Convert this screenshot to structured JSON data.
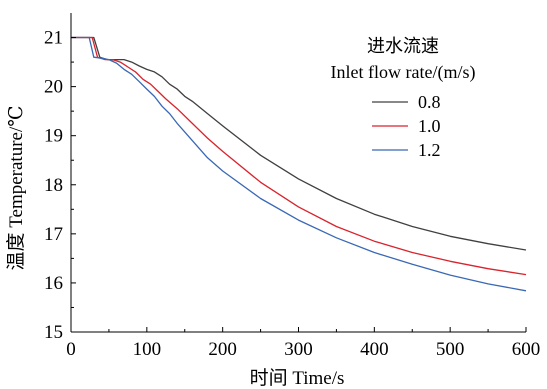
{
  "chart_data": {
    "type": "line",
    "title": "",
    "xlabel": "时间 Time/s",
    "ylabel": "温度 Temperature/℃",
    "xlim": [
      0,
      600
    ],
    "ylim": [
      15,
      21.5
    ],
    "x_ticks": [
      0,
      100,
      200,
      300,
      400,
      500,
      600
    ],
    "y_ticks": [
      15,
      16,
      17,
      18,
      19,
      20,
      21
    ],
    "grid": false,
    "legend": {
      "title_line1": "进水流速",
      "title_line2": "Inlet flow rate/(m/s)",
      "placement": "top-right"
    },
    "series": [
      {
        "name": "0.8",
        "color": "#404040",
        "x": [
          0,
          25,
          30,
          38,
          48,
          60,
          70,
          80,
          90,
          100,
          110,
          120,
          130,
          140,
          150,
          160,
          180,
          200,
          250,
          300,
          350,
          400,
          450,
          500,
          550,
          600
        ],
        "y": [
          21.0,
          21.0,
          21.0,
          20.6,
          20.55,
          20.55,
          20.55,
          20.5,
          20.42,
          20.35,
          20.3,
          20.2,
          20.05,
          19.95,
          19.8,
          19.7,
          19.45,
          19.2,
          18.6,
          18.12,
          17.72,
          17.4,
          17.15,
          16.95,
          16.8,
          16.67
        ]
      },
      {
        "name": "1.0",
        "color": "#d9232d",
        "x": [
          0,
          22,
          28,
          35,
          45,
          55,
          65,
          75,
          85,
          95,
          105,
          115,
          125,
          140,
          160,
          180,
          200,
          250,
          300,
          350,
          400,
          450,
          500,
          550,
          600
        ],
        "y": [
          21.0,
          21.0,
          21.0,
          20.6,
          20.55,
          20.55,
          20.5,
          20.4,
          20.3,
          20.15,
          20.05,
          19.9,
          19.75,
          19.55,
          19.25,
          18.95,
          18.68,
          18.05,
          17.55,
          17.15,
          16.85,
          16.62,
          16.44,
          16.29,
          16.17
        ]
      },
      {
        "name": "1.2",
        "color": "#3a68b5",
        "x": [
          0,
          20,
          24,
          30,
          40,
          50,
          60,
          70,
          80,
          90,
          100,
          110,
          120,
          130,
          140,
          160,
          180,
          200,
          250,
          300,
          350,
          400,
          450,
          500,
          550,
          600
        ],
        "y": [
          21.0,
          21.0,
          21.0,
          20.6,
          20.58,
          20.55,
          20.48,
          20.35,
          20.25,
          20.1,
          19.95,
          19.8,
          19.6,
          19.45,
          19.25,
          18.9,
          18.55,
          18.28,
          17.72,
          17.28,
          16.92,
          16.62,
          16.38,
          16.16,
          15.98,
          15.84
        ]
      }
    ]
  }
}
